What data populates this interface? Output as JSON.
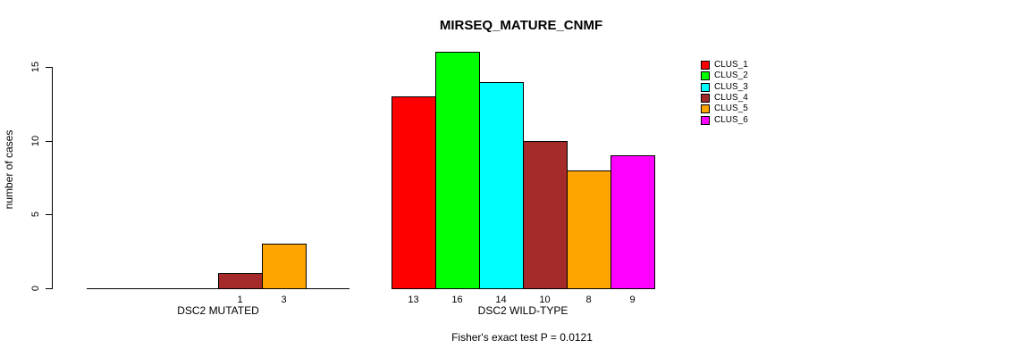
{
  "chart_data": {
    "type": "bar",
    "title": "MIRSEQ_MATURE_CNMF",
    "ylabel": "number of cases",
    "xlabel": "",
    "yticks": [
      0,
      5,
      10,
      15
    ],
    "ylim": [
      0,
      16
    ],
    "grid": false,
    "legend_position": "top-right",
    "clusters": [
      {
        "name": "CLUS_1",
        "color": "#FF0000"
      },
      {
        "name": "CLUS_2",
        "color": "#00FF00"
      },
      {
        "name": "CLUS_3",
        "color": "#00FFFF"
      },
      {
        "name": "CLUS_4",
        "color": "#A52A2A"
      },
      {
        "name": "CLUS_5",
        "color": "#FFA500"
      },
      {
        "name": "CLUS_6",
        "color": "#FF00FF"
      }
    ],
    "categories": [
      "CLUS_1",
      "CLUS_2",
      "CLUS_3",
      "CLUS_4",
      "CLUS_5",
      "CLUS_6"
    ],
    "groups": [
      {
        "label": "DSC2 MUTATED",
        "values": [
          0,
          0,
          0,
          1,
          3,
          0
        ]
      },
      {
        "label": "DSC2 WILD-TYPE",
        "values": [
          13,
          16,
          14,
          10,
          8,
          9
        ]
      }
    ],
    "caption": "Fisher's exact test P = 0.0121"
  }
}
